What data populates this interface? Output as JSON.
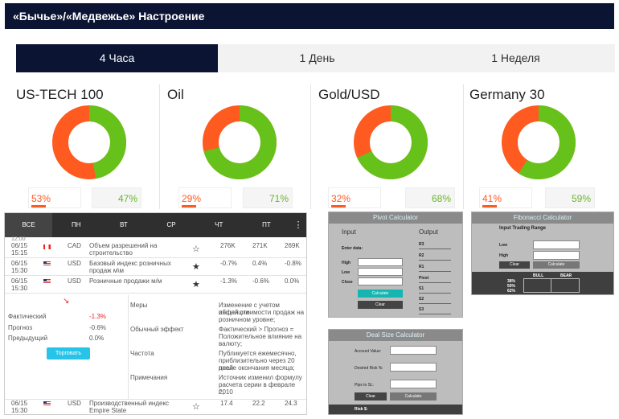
{
  "header": {
    "title": "«Бычье»/«Медвежье» Настроение"
  },
  "tabs": [
    "4 Часа",
    "1 День",
    "1 Неделя"
  ],
  "cards": [
    {
      "name": "US-TECH 100",
      "bear": "53%",
      "bull": "47%",
      "bear_value": 53,
      "bull_value": 47
    },
    {
      "name": "Oil",
      "bear": "29%",
      "bull": "71%",
      "bear_value": 29,
      "bull_value": 71
    },
    {
      "name": "Gold/USD",
      "bear": "32%",
      "bull": "68%",
      "bear_value": 32,
      "bull_value": 68
    },
    {
      "name": "Germany 30",
      "bear": "41%",
      "bull": "59%",
      "bear_value": 41,
      "bull_value": 59
    }
  ],
  "colors": {
    "bear": "#ff5a1f",
    "bull": "#66c21a",
    "header": "#0b1533"
  },
  "calendar": {
    "days": [
      "ВСЕ",
      "ПН",
      "ВТ",
      "СР",
      "ЧТ",
      "ПТ"
    ],
    "more": "⋮",
    "rows": [
      {
        "date": "06/15",
        "time": "15:15",
        "currency": "CAD",
        "event": "Объем разрешений на",
        "event2": "строительство",
        "actual": "276K",
        "forecast": "271K",
        "previous": "269K",
        "star": "☆"
      },
      {
        "date": "06/15",
        "time": "15:30",
        "currency": "USD",
        "event": "Базовый индекс розничных",
        "event2": "продаж м\\м",
        "actual": "-0.7%",
        "forecast": "0.4%",
        "previous": "-0.8%",
        "star": "★"
      },
      {
        "date": "06/15",
        "time": "15:30",
        "currency": "USD",
        "event": "Розничные продажи м/м",
        "event2": "",
        "actual": "-1.3%",
        "forecast": "-0.6%",
        "previous": "0.0%",
        "star": "★"
      }
    ],
    "last_row": {
      "date": "06/15",
      "time": "15:30",
      "currency": "USD",
      "event": "Производственный индекс",
      "event2": "Empire State",
      "actual": "17.4",
      "forecast": "22.2",
      "previous": "24.3",
      "star": "☆"
    },
    "partial_time": "12:00",
    "detail": {
      "arrow": "↘",
      "stats": [
        {
          "label": "Фактический",
          "value": "-1.3%"
        },
        {
          "label": "Прогноз",
          "value": "-0.6%"
        },
        {
          "label": "Предыдущий",
          "value": "0.0%"
        }
      ],
      "trade_button": "Торговать",
      "info": [
        {
          "label": "Меры",
          "text": [
            "Изменение с учетом инфляции",
            "общей стоимости продаж на",
            "розничном уровне;"
          ]
        },
        {
          "label": "Обычный эффект",
          "text": [
            "Фактический > Прогноз =",
            "Положительное влияние на",
            "валюту;"
          ]
        },
        {
          "label": "Частота",
          "text": [
            "Публикуется ежемесячно,",
            "приблизительно через 20 дней",
            "после окончания месяца;"
          ]
        },
        {
          "label": "Примечания",
          "text": [
            "Источник изменил формулу",
            "расчета серии в феврале 2010",
            "г.;"
          ]
        }
      ]
    }
  },
  "pivot": {
    "title": "Pivot Calculator",
    "input": "Input",
    "output": "Output",
    "enter": "Enter data:",
    "high": "High",
    "low": "Low",
    "close": "Close",
    "calc": "Calculate",
    "clear": "Clear",
    "outputs": [
      "R3",
      "R2",
      "R1",
      "Pivot",
      "S1",
      "S2",
      "S3"
    ]
  },
  "fib": {
    "title": "Fibonacci Calculator",
    "range": "Input Trading Range",
    "high": "High",
    "low": "Low",
    "clear": "Clear",
    "calc": "Calculate",
    "bull": "BULL",
    "bear": "BEAR",
    "levels": [
      "38%",
      "50%",
      "62%"
    ]
  },
  "deal": {
    "title": "Deal Size Calculator",
    "account": "Account Value:",
    "risk": "Desired Risk %:",
    "pips": "Pips to SL:",
    "clear": "Clear",
    "calc": "Calculate",
    "risk_out": "Risk $:"
  }
}
